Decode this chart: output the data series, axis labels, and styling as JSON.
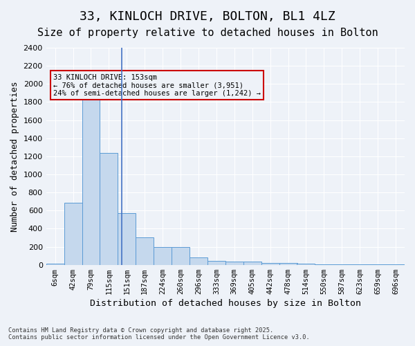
{
  "title": "33, KINLOCH DRIVE, BOLTON, BL1 4LZ",
  "subtitle": "Size of property relative to detached houses in Bolton",
  "xlabel": "Distribution of detached houses by size in Bolton",
  "ylabel": "Number of detached properties",
  "bin_labels": [
    "6sqm",
    "42sqm",
    "79sqm",
    "115sqm",
    "151sqm",
    "187sqm",
    "224sqm",
    "260sqm",
    "296sqm",
    "333sqm",
    "369sqm",
    "405sqm",
    "442sqm",
    "478sqm",
    "514sqm",
    "550sqm",
    "587sqm",
    "623sqm",
    "659sqm",
    "696sqm"
  ],
  "bar_values": [
    15,
    690,
    1960,
    1240,
    575,
    305,
    200,
    200,
    80,
    45,
    35,
    35,
    20,
    20,
    10,
    5,
    5,
    5,
    5,
    5
  ],
  "bar_color": "#c5d8ed",
  "bar_edge_color": "#5b9bd5",
  "vline_x": 3.72,
  "vline_color": "#4472c4",
  "ylim": [
    0,
    2400
  ],
  "yticks": [
    0,
    200,
    400,
    600,
    800,
    1000,
    1200,
    1400,
    1600,
    1800,
    2000,
    2200,
    2400
  ],
  "annotation_text": "33 KINLOCH DRIVE: 153sqm\n← 76% of detached houses are smaller (3,951)\n24% of semi-detached houses are larger (1,242) →",
  "annotation_box_color": "#cc0000",
  "footer_line1": "Contains HM Land Registry data © Crown copyright and database right 2025.",
  "footer_line2": "Contains public sector information licensed under the Open Government Licence v3.0.",
  "bg_color": "#eef2f8",
  "grid_color": "#ffffff",
  "title_fontsize": 13,
  "subtitle_fontsize": 11,
  "axis_fontsize": 9,
  "tick_fontsize": 7.5
}
